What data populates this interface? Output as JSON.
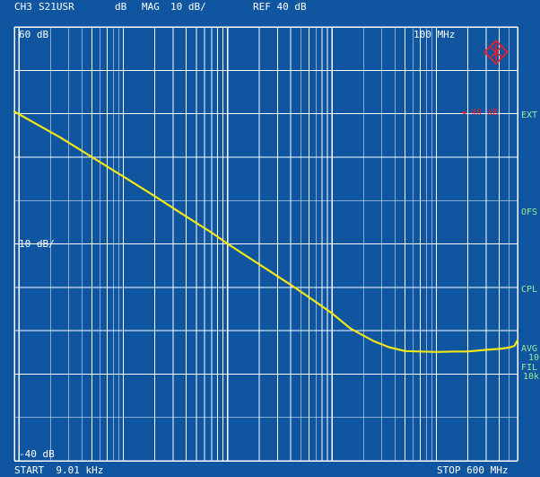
{
  "header": {
    "channel": "CH3",
    "parameter": "S21USR",
    "format_unit": "dB",
    "format": "MAG",
    "scale": "10 dB/",
    "reference": "REF 40 dB"
  },
  "plot_labels": {
    "top_left": "60 dB",
    "marker_freq": "100 MHz",
    "mid_left": "10 dB/",
    "bottom_left": "-40 dB",
    "ref_marker": "◄ 40 dB"
  },
  "side_labels": {
    "ext": "EXT",
    "ofs": "OFS",
    "cpl": "CPL",
    "avg": "AVG",
    "avg_value": "10",
    "fil": "FIL",
    "fil_value": "10k"
  },
  "footer": {
    "start": "START  9.01 kHz",
    "stop": "STOP 600 MHz"
  },
  "colors": {
    "background": "#0f55a0",
    "grid": "#ffffff",
    "trace": "#f2e619",
    "reference_marker": "#e0202e",
    "side_label": "#9ee89b"
  },
  "chart_data": {
    "type": "line",
    "title": "",
    "xlabel": "",
    "ylabel": "",
    "x_scale": "log",
    "x_unit": "Hz",
    "xlim": [
      9010,
      600000000
    ],
    "y_unit": "dB",
    "ylim": [
      -40,
      60
    ],
    "grid": true,
    "series": [
      {
        "x": [
          9010,
          15000,
          25000,
          50000,
          100000,
          200000,
          400000,
          700000,
          1000000,
          2000000,
          4000000,
          7000000,
          10000000,
          15000000,
          25000000,
          35000000,
          50000000,
          70000000,
          100000000,
          150000000,
          200000000,
          300000000,
          400000000,
          500000000,
          560000000,
          600000000
        ],
        "values": [
          40.5,
          37.5,
          34.5,
          30.0,
          25.5,
          21.0,
          16.3,
          12.6,
          10.0,
          5.3,
          0.6,
          -3.4,
          -6.0,
          -9.5,
          -12.4,
          -13.8,
          -14.7,
          -14.8,
          -14.9,
          -14.8,
          -14.8,
          -14.4,
          -14.2,
          -13.9,
          -13.5,
          -12.2
        ]
      }
    ]
  }
}
